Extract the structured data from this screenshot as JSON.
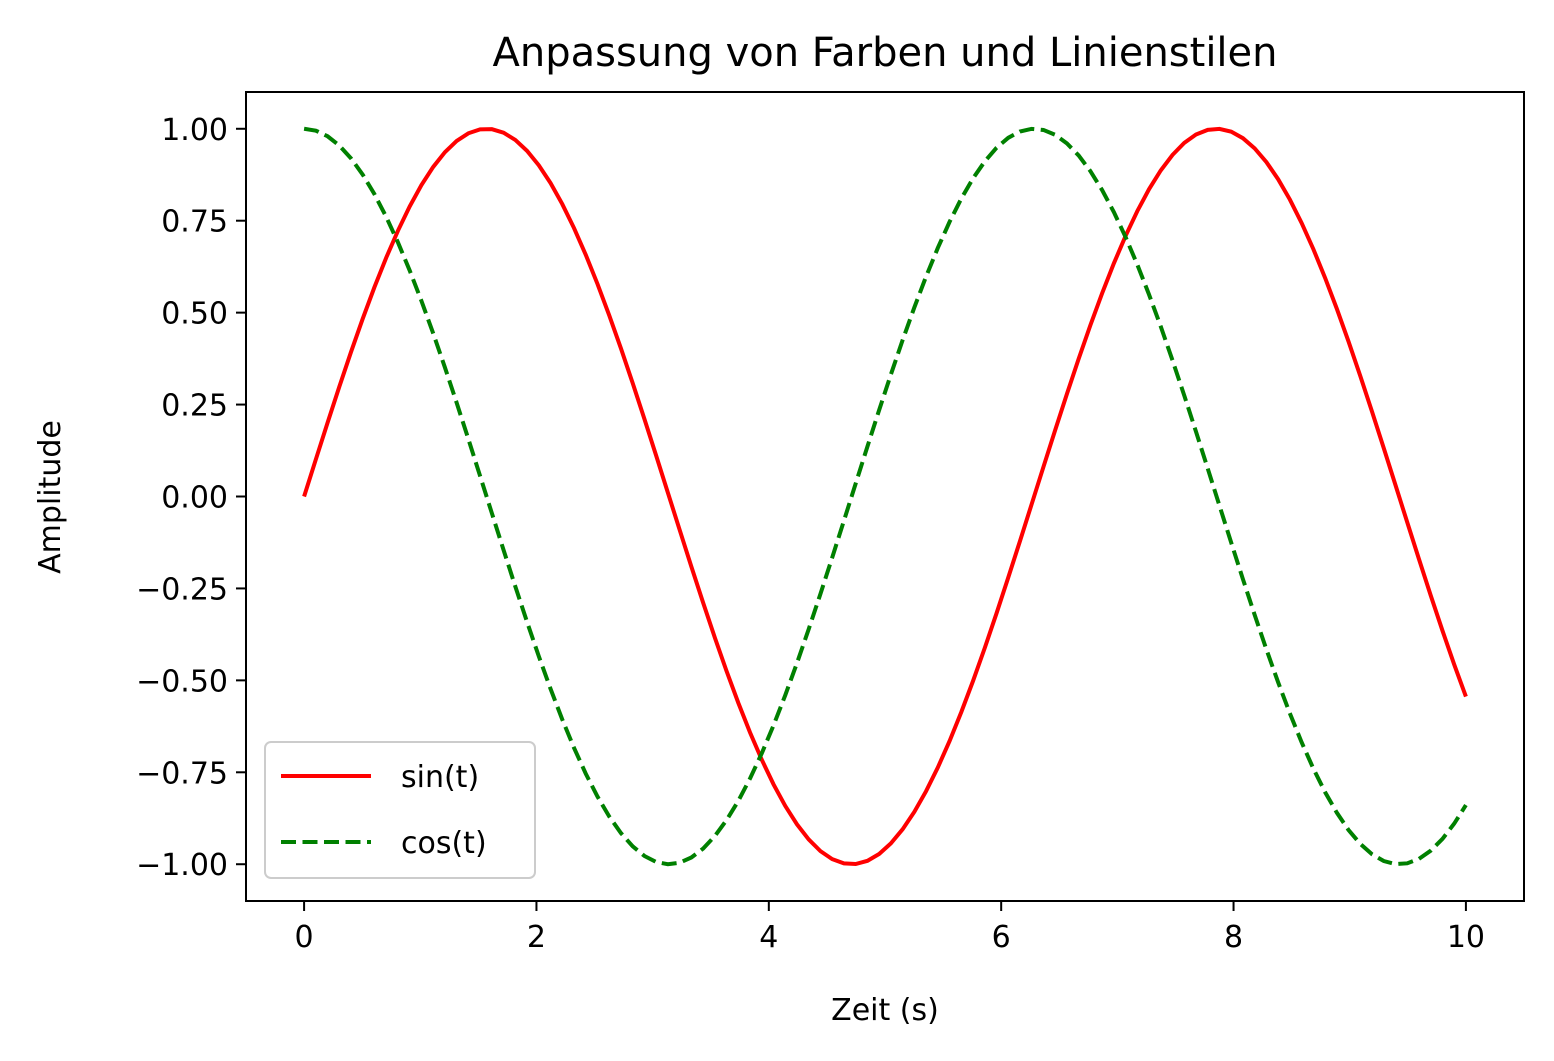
{
  "chart_data": {
    "type": "line",
    "title": "Anpassung von Farben und Linienstilen",
    "xlabel": "Zeit (s)",
    "ylabel": "Amplitude",
    "xlim": [
      -0.5,
      10.5
    ],
    "ylim": [
      -1.1,
      1.1
    ],
    "x_ticks": [
      0,
      2,
      4,
      6,
      8,
      10
    ],
    "x_tick_labels": [
      "0",
      "2",
      "4",
      "6",
      "8",
      "10"
    ],
    "y_ticks": [
      1.0,
      0.75,
      0.5,
      0.25,
      0.0,
      -0.25,
      -0.5,
      -0.75,
      -1.0
    ],
    "y_tick_labels": [
      "1.00",
      "0.75",
      "0.50",
      "0.25",
      "0.00",
      "−0.25",
      "−0.50",
      "−0.75",
      "−1.00"
    ],
    "grid": false,
    "legend_position": "lower-left",
    "x_range": [
      0,
      10
    ],
    "samples": 100,
    "series": [
      {
        "name": "sin(t)",
        "function": "sin",
        "color": "#ff0000",
        "linestyle": "solid"
      },
      {
        "name": "cos(t)",
        "function": "cos",
        "color": "#008000",
        "linestyle": "dashed"
      }
    ]
  }
}
